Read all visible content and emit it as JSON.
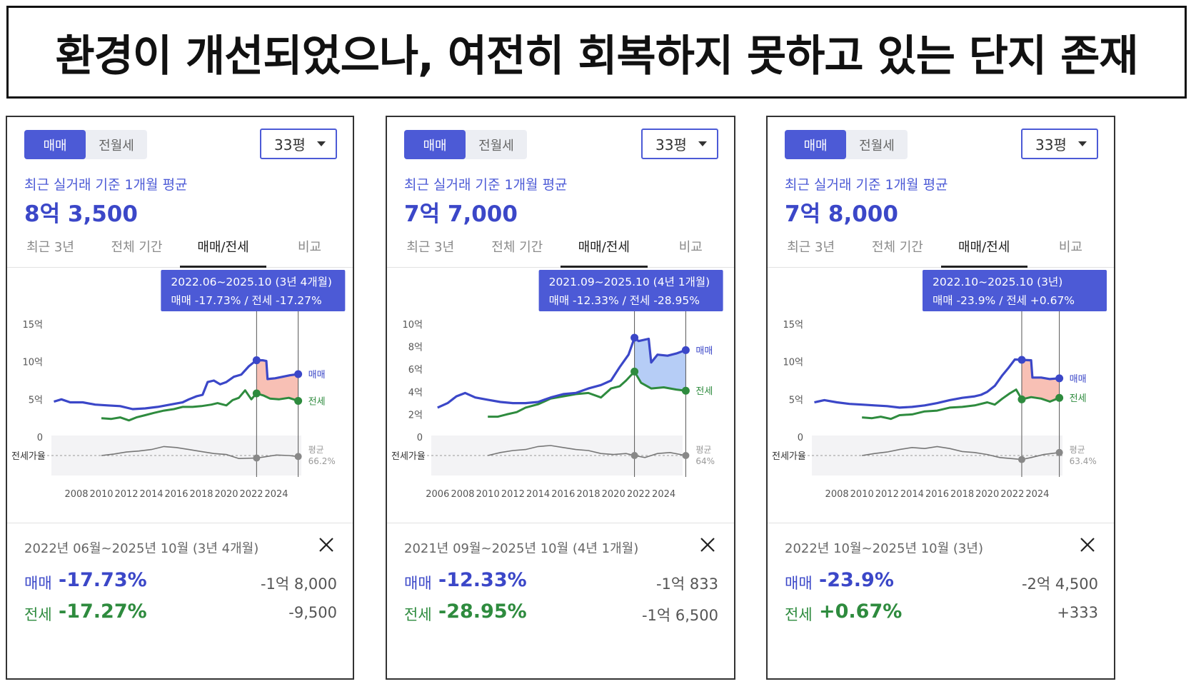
{
  "headline": "환경이 개선되었으나, 여전히 회복하지 못하고 있는 단지 존재",
  "colors": {
    "sale": "#3b47c8",
    "jeonse": "#2e8b3e",
    "accent": "#4c5ad6",
    "tooltip": "#4c5ad6",
    "ratio": "#777777"
  },
  "panels": [
    {
      "toggle": [
        "매매",
        "전월세"
      ],
      "size_option": "33평",
      "basis_label": "최근 실거래 기준 1개월 평균",
      "price": "8억 3,500",
      "tabs": [
        "최근 3년",
        "전체 기간",
        "매매/전세",
        "비교"
      ],
      "tooltip": {
        "line1": "2022.06~2025.10 (3년 4개월)",
        "line2": "매매 -17.73%  /  전세 -17.27%"
      },
      "summary": {
        "range": "2022년 06월~2025년 10월 (3년 4개월)",
        "sale_label": "매매",
        "sale_pct": "-17.73%",
        "sale_amt": "-1억 8,000",
        "jeonse_label": "전세",
        "jeonse_pct": "-17.27%",
        "jeonse_amt": "-9,500"
      },
      "chart_data": {
        "type": "line",
        "y_ticks": [
          "15억",
          "10억",
          "5억",
          "0"
        ],
        "ylim": [
          0,
          15
        ],
        "x_ticks": [
          "2008",
          "2010",
          "2012",
          "2014",
          "2016",
          "2018",
          "2020",
          "2022",
          "2024"
        ],
        "xlim": [
          2006,
          2026
        ],
        "ratio_label": "전세가율",
        "avg_label": "평균",
        "avg_value": "66.2%",
        "series_labels": [
          "매매",
          "전세"
        ],
        "highlight_start": 2022.42,
        "highlight_end": 2025.75,
        "decline_color": "#f7b5a8",
        "sale": [
          [
            2006.2,
            4.7
          ],
          [
            2006.8,
            5.0
          ],
          [
            2007.5,
            4.6
          ],
          [
            2008.5,
            4.6
          ],
          [
            2009.5,
            4.3
          ],
          [
            2010.5,
            4.2
          ],
          [
            2011.5,
            4.1
          ],
          [
            2012.5,
            3.7
          ],
          [
            2013.5,
            3.8
          ],
          [
            2014.5,
            4.0
          ],
          [
            2015.5,
            4.3
          ],
          [
            2016.5,
            4.6
          ],
          [
            2017.0,
            5.0
          ],
          [
            2017.6,
            5.4
          ],
          [
            2018.1,
            5.6
          ],
          [
            2018.5,
            7.3
          ],
          [
            2019.0,
            7.5
          ],
          [
            2019.5,
            7.0
          ],
          [
            2020.0,
            7.3
          ],
          [
            2020.6,
            8.0
          ],
          [
            2021.2,
            8.3
          ],
          [
            2021.8,
            9.4
          ],
          [
            2022.4,
            10.2
          ],
          [
            2022.9,
            10.2
          ],
          [
            2023.2,
            10.1
          ],
          [
            2023.3,
            7.7
          ],
          [
            2023.9,
            7.8
          ],
          [
            2024.5,
            8.0
          ],
          [
            2025.1,
            8.2
          ],
          [
            2025.75,
            8.35
          ]
        ],
        "jeonse": [
          [
            2010.0,
            2.5
          ],
          [
            2010.8,
            2.4
          ],
          [
            2011.5,
            2.6
          ],
          [
            2012.2,
            2.2
          ],
          [
            2012.8,
            2.6
          ],
          [
            2013.5,
            2.9
          ],
          [
            2014.2,
            3.2
          ],
          [
            2015.0,
            3.5
          ],
          [
            2015.8,
            3.7
          ],
          [
            2016.5,
            4.0
          ],
          [
            2017.3,
            4.0
          ],
          [
            2018.0,
            4.1
          ],
          [
            2018.8,
            4.3
          ],
          [
            2019.3,
            4.5
          ],
          [
            2020.0,
            4.2
          ],
          [
            2020.5,
            4.9
          ],
          [
            2021.0,
            5.2
          ],
          [
            2021.5,
            6.2
          ],
          [
            2022.0,
            5.0
          ],
          [
            2022.4,
            5.8
          ],
          [
            2023.0,
            5.5
          ],
          [
            2023.5,
            5.1
          ],
          [
            2024.2,
            5.0
          ],
          [
            2025.0,
            5.2
          ],
          [
            2025.75,
            4.8
          ]
        ],
        "ratio": [
          [
            2010.0,
            0.0
          ],
          [
            2011.0,
            0.15
          ],
          [
            2012.0,
            0.35
          ],
          [
            2013.0,
            0.45
          ],
          [
            2014.0,
            0.6
          ],
          [
            2015.0,
            0.9
          ],
          [
            2016.0,
            0.8
          ],
          [
            2017.0,
            0.6
          ],
          [
            2018.0,
            0.4
          ],
          [
            2019.0,
            0.2
          ],
          [
            2020.0,
            0.1
          ],
          [
            2021.0,
            -0.3
          ],
          [
            2022.42,
            -0.25
          ],
          [
            2023.0,
            -0.15
          ],
          [
            2024.0,
            0.05
          ],
          [
            2025.0,
            0.0
          ],
          [
            2025.75,
            -0.1
          ]
        ]
      }
    },
    {
      "toggle": [
        "매매",
        "전월세"
      ],
      "size_option": "33평",
      "basis_label": "최근 실거래 기준 1개월 평균",
      "price": "7억 7,000",
      "tabs": [
        "최근 3년",
        "전체 기간",
        "매매/전세",
        "비교"
      ],
      "tooltip": {
        "line1": "2021.09~2025.10 (4년 1개월)",
        "line2": "매매 -12.33%  /  전세 -28.95%"
      },
      "summary": {
        "range": "2021년 09월~2025년 10월 (4년 1개월)",
        "sale_label": "매매",
        "sale_pct": "-12.33%",
        "sale_amt": "-1억 833",
        "jeonse_label": "전세",
        "jeonse_pct": "-28.95%",
        "jeonse_amt": "-1억 6,500"
      },
      "chart_data": {
        "type": "line",
        "y_ticks": [
          "10억",
          "8억",
          "6억",
          "4억",
          "2억",
          "0"
        ],
        "ylim": [
          0,
          10
        ],
        "x_ticks": [
          "2006",
          "2008",
          "2010",
          "2012",
          "2014",
          "2016",
          "2018",
          "2020",
          "2022",
          "2024"
        ],
        "xlim": [
          2005.5,
          2025.5
        ],
        "ratio_label": "전세가율",
        "avg_label": "평균",
        "avg_value": "64%",
        "series_labels": [
          "매매",
          "전세"
        ],
        "highlight_start": 2021.67,
        "highlight_end": 2025.75,
        "decline_color": "#a9c4f5",
        "sale": [
          [
            2006.0,
            2.6
          ],
          [
            2006.8,
            3.0
          ],
          [
            2007.5,
            3.6
          ],
          [
            2008.2,
            3.9
          ],
          [
            2009.0,
            3.5
          ],
          [
            2010.0,
            3.3
          ],
          [
            2011.0,
            3.1
          ],
          [
            2012.0,
            3.0
          ],
          [
            2013.0,
            3.0
          ],
          [
            2014.0,
            3.1
          ],
          [
            2015.0,
            3.5
          ],
          [
            2016.0,
            3.8
          ],
          [
            2017.0,
            3.9
          ],
          [
            2018.0,
            4.3
          ],
          [
            2019.0,
            4.6
          ],
          [
            2019.8,
            5.0
          ],
          [
            2020.5,
            6.2
          ],
          [
            2021.2,
            7.3
          ],
          [
            2021.67,
            8.8
          ],
          [
            2022.0,
            8.5
          ],
          [
            2022.8,
            8.7
          ],
          [
            2023.0,
            6.6
          ],
          [
            2023.5,
            7.3
          ],
          [
            2024.3,
            7.2
          ],
          [
            2025.0,
            7.4
          ],
          [
            2025.75,
            7.7
          ]
        ],
        "jeonse": [
          [
            2010.0,
            1.8
          ],
          [
            2010.8,
            1.8
          ],
          [
            2011.5,
            2.0
          ],
          [
            2012.3,
            2.2
          ],
          [
            2013.0,
            2.6
          ],
          [
            2014.0,
            2.9
          ],
          [
            2015.0,
            3.4
          ],
          [
            2016.0,
            3.6
          ],
          [
            2017.0,
            3.8
          ],
          [
            2018.0,
            3.9
          ],
          [
            2019.0,
            3.5
          ],
          [
            2019.8,
            4.3
          ],
          [
            2020.5,
            4.5
          ],
          [
            2021.0,
            5.0
          ],
          [
            2021.67,
            5.8
          ],
          [
            2022.2,
            4.8
          ],
          [
            2023.0,
            4.3
          ],
          [
            2024.0,
            4.4
          ],
          [
            2025.0,
            4.2
          ],
          [
            2025.75,
            4.1
          ]
        ],
        "ratio": [
          [
            2010.0,
            0.0
          ],
          [
            2011.0,
            0.3
          ],
          [
            2012.0,
            0.5
          ],
          [
            2013.0,
            0.6
          ],
          [
            2014.0,
            0.9
          ],
          [
            2015.0,
            1.0
          ],
          [
            2016.0,
            0.8
          ],
          [
            2017.0,
            0.6
          ],
          [
            2018.0,
            0.5
          ],
          [
            2019.0,
            0.2
          ],
          [
            2020.0,
            0.1
          ],
          [
            2021.0,
            0.2
          ],
          [
            2021.67,
            0.0
          ],
          [
            2022.5,
            -0.2
          ],
          [
            2023.5,
            0.2
          ],
          [
            2024.5,
            0.3
          ],
          [
            2025.75,
            0.0
          ]
        ]
      }
    },
    {
      "toggle": [
        "매매",
        "전월세"
      ],
      "size_option": "33평",
      "basis_label": "최근 실거래 기준 1개월 평균",
      "price": "7억 8,000",
      "tabs": [
        "최근 3년",
        "전체 기간",
        "매매/전세",
        "비교"
      ],
      "tooltip": {
        "line1": "2022.10~2025.10 (3년)",
        "line2": "매매 -23.9%  /  전세 +0.67%"
      },
      "summary": {
        "range": "2022년 10월~2025년 10월 (3년)",
        "sale_label": "매매",
        "sale_pct": "-23.9%",
        "sale_amt": "-2억 4,500",
        "jeonse_label": "전세",
        "jeonse_pct": "+0.67%",
        "jeonse_amt": "+333"
      },
      "chart_data": {
        "type": "line",
        "y_ticks": [
          "15억",
          "10억",
          "5억",
          "0"
        ],
        "ylim": [
          0,
          15
        ],
        "x_ticks": [
          "2008",
          "2010",
          "2012",
          "2014",
          "2016",
          "2018",
          "2020",
          "2022",
          "2024"
        ],
        "xlim": [
          2006,
          2026
        ],
        "ratio_label": "전세가율",
        "avg_label": "평균",
        "avg_value": "63.4%",
        "series_labels": [
          "매매",
          "전세"
        ],
        "highlight_start": 2022.75,
        "highlight_end": 2025.75,
        "decline_color": "#f7b5a8",
        "sale": [
          [
            2006.2,
            4.6
          ],
          [
            2007.0,
            4.9
          ],
          [
            2008.0,
            4.6
          ],
          [
            2009.0,
            4.4
          ],
          [
            2010.0,
            4.3
          ],
          [
            2011.0,
            4.2
          ],
          [
            2012.0,
            4.1
          ],
          [
            2013.0,
            3.9
          ],
          [
            2014.0,
            4.0
          ],
          [
            2015.0,
            4.2
          ],
          [
            2016.0,
            4.5
          ],
          [
            2017.0,
            4.9
          ],
          [
            2018.0,
            5.2
          ],
          [
            2019.0,
            5.4
          ],
          [
            2019.5,
            5.6
          ],
          [
            2020.0,
            6.0
          ],
          [
            2020.6,
            6.8
          ],
          [
            2021.2,
            8.2
          ],
          [
            2021.7,
            9.2
          ],
          [
            2022.2,
            10.3
          ],
          [
            2022.75,
            10.25
          ],
          [
            2023.5,
            10.2
          ],
          [
            2023.6,
            7.9
          ],
          [
            2024.3,
            7.9
          ],
          [
            2025.0,
            7.7
          ],
          [
            2025.75,
            7.8
          ]
        ],
        "jeonse": [
          [
            2010.0,
            2.6
          ],
          [
            2010.8,
            2.5
          ],
          [
            2011.5,
            2.7
          ],
          [
            2012.3,
            2.4
          ],
          [
            2013.0,
            2.9
          ],
          [
            2014.0,
            3.0
          ],
          [
            2015.0,
            3.4
          ],
          [
            2016.0,
            3.5
          ],
          [
            2017.0,
            3.9
          ],
          [
            2018.0,
            4.0
          ],
          [
            2019.0,
            4.2
          ],
          [
            2020.0,
            4.6
          ],
          [
            2020.6,
            4.3
          ],
          [
            2021.2,
            5.1
          ],
          [
            2021.8,
            5.8
          ],
          [
            2022.3,
            6.3
          ],
          [
            2022.75,
            5.0
          ],
          [
            2023.5,
            5.3
          ],
          [
            2024.3,
            5.1
          ],
          [
            2025.0,
            4.7
          ],
          [
            2025.75,
            5.2
          ]
        ],
        "ratio": [
          [
            2010.0,
            0.0
          ],
          [
            2011.0,
            0.2
          ],
          [
            2012.0,
            0.35
          ],
          [
            2013.0,
            0.6
          ],
          [
            2014.0,
            0.8
          ],
          [
            2015.0,
            0.7
          ],
          [
            2016.0,
            0.9
          ],
          [
            2017.0,
            0.7
          ],
          [
            2018.0,
            0.4
          ],
          [
            2019.0,
            0.3
          ],
          [
            2020.0,
            0.1
          ],
          [
            2021.0,
            -0.2
          ],
          [
            2022.75,
            -0.4
          ],
          [
            2023.5,
            -0.2
          ],
          [
            2024.5,
            0.1
          ],
          [
            2025.75,
            0.3
          ]
        ]
      }
    }
  ]
}
